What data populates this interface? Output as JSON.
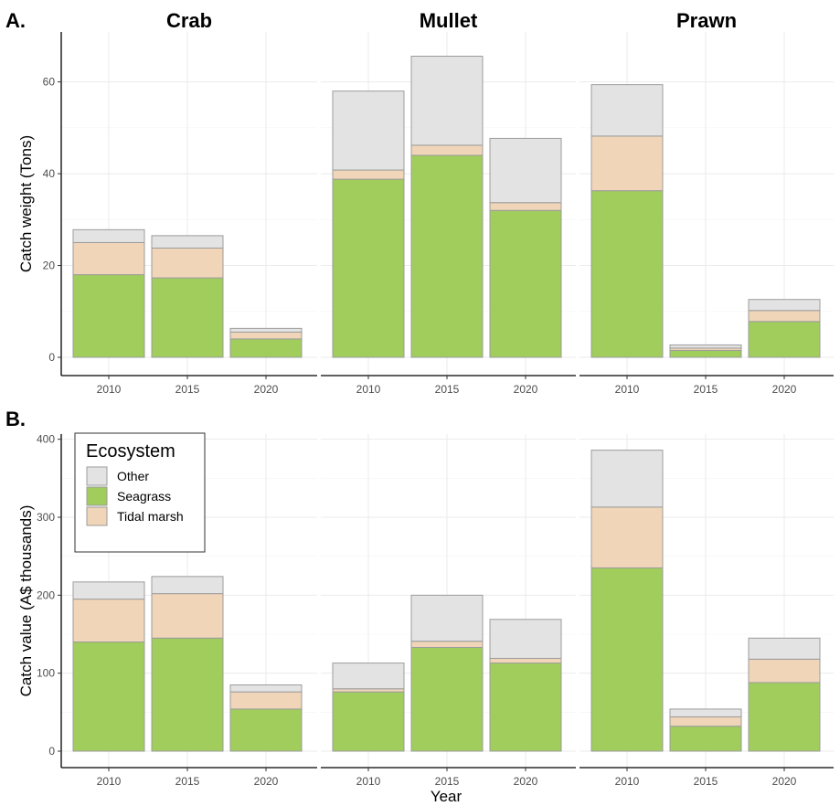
{
  "colors": {
    "Other": "#e3e3e3",
    "Seagrass": "#a0cd5c",
    "Tidal marsh": "#f0d5b8"
  },
  "legend": {
    "title": "Ecosystem",
    "items": [
      "Other",
      "Seagrass",
      "Tidal marsh"
    ]
  },
  "xlabel": "Year",
  "chart_data": [
    {
      "type": "bar",
      "stacked": true,
      "panel_label": "A.",
      "ylabel": "Catch weight (Tons)",
      "ylim": [
        0,
        68
      ],
      "yticks": [
        0,
        20,
        40,
        60
      ],
      "categories": [
        "2010",
        "2015",
        "2020"
      ],
      "facets": [
        {
          "title": "Crab",
          "series": [
            {
              "name": "Seagrass",
              "values": [
                18,
                17.3,
                4
              ]
            },
            {
              "name": "Tidal marsh",
              "values": [
                7,
                6.5,
                1.5
              ]
            },
            {
              "name": "Other",
              "values": [
                2.8,
                2.7,
                0.8
              ]
            }
          ]
        },
        {
          "title": "Mullet",
          "series": [
            {
              "name": "Seagrass",
              "values": [
                38.8,
                44,
                32
              ]
            },
            {
              "name": "Tidal marsh",
              "values": [
                2,
                2.2,
                1.7
              ]
            },
            {
              "name": "Other",
              "values": [
                17.2,
                19.4,
                14
              ]
            }
          ]
        },
        {
          "title": "Prawn",
          "series": [
            {
              "name": "Seagrass",
              "values": [
                36.3,
                1.5,
                7.8
              ]
            },
            {
              "name": "Tidal marsh",
              "values": [
                11.9,
                0.5,
                2.4
              ]
            },
            {
              "name": "Other",
              "values": [
                11.2,
                0.7,
                2.4
              ]
            }
          ]
        }
      ]
    },
    {
      "type": "bar",
      "stacked": true,
      "panel_label": "B.",
      "ylabel": "Catch value (A$ thousands)",
      "ylim": [
        0,
        410
      ],
      "yticks": [
        0,
        100,
        200,
        300,
        400
      ],
      "categories": [
        "2010",
        "2015",
        "2020"
      ],
      "facets": [
        {
          "title": "Crab",
          "series": [
            {
              "name": "Seagrass",
              "values": [
                140,
                145,
                54
              ]
            },
            {
              "name": "Tidal marsh",
              "values": [
                55,
                57,
                22
              ]
            },
            {
              "name": "Other",
              "values": [
                22,
                22,
                9
              ]
            }
          ]
        },
        {
          "title": "Mullet",
          "series": [
            {
              "name": "Seagrass",
              "values": [
                76,
                133,
                113
              ]
            },
            {
              "name": "Tidal marsh",
              "values": [
                4,
                8,
                6
              ]
            },
            {
              "name": "Other",
              "values": [
                33,
                59,
                50
              ]
            }
          ]
        },
        {
          "title": "Prawn",
          "series": [
            {
              "name": "Seagrass",
              "values": [
                235,
                32,
                88
              ]
            },
            {
              "name": "Tidal marsh",
              "values": [
                78,
                12,
                30
              ]
            },
            {
              "name": "Other",
              "values": [
                73,
                10,
                27
              ]
            }
          ]
        }
      ]
    }
  ]
}
